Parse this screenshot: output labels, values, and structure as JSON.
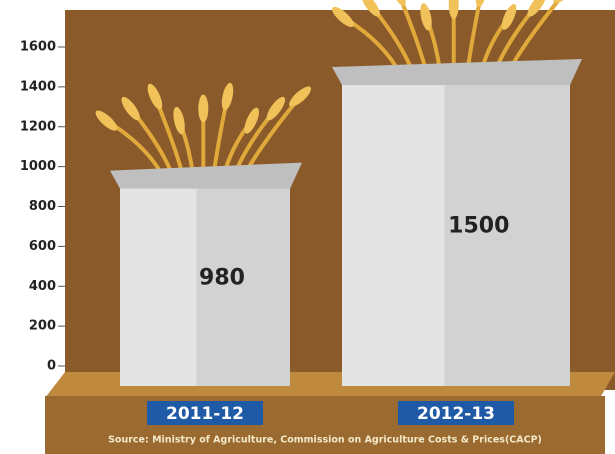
{
  "chart_data": {
    "type": "bar",
    "categories": [
      "2011-12",
      "2012-13"
    ],
    "values": [
      980,
      1500
    ],
    "ylim": [
      0,
      1600
    ],
    "yticks": [
      0,
      200,
      400,
      600,
      800,
      1000,
      1200,
      1400,
      1600
    ],
    "color": "#e4e4e4",
    "source": "Source: Ministry of Agriculture, Commission on Agriculture Costs & Prices(CACP)"
  }
}
